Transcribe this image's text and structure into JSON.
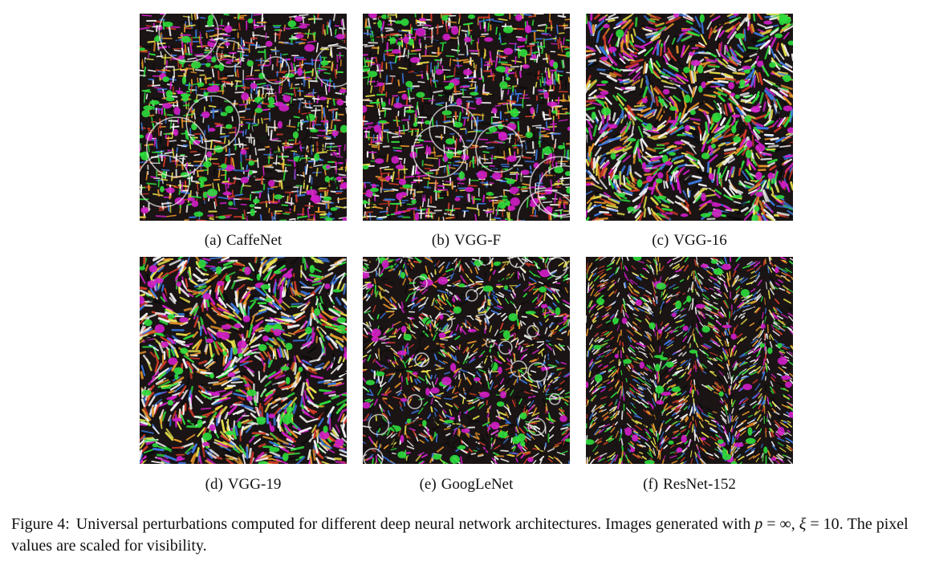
{
  "figure": {
    "panels": [
      {
        "id": "a",
        "label": "(a)",
        "name": "CaffeNet",
        "style": "grid"
      },
      {
        "id": "b",
        "label": "(b)",
        "name": "VGG-F",
        "style": "grid"
      },
      {
        "id": "c",
        "label": "(c)",
        "name": "VGG-16",
        "style": "swirl"
      },
      {
        "id": "d",
        "label": "(d)",
        "name": "VGG-19",
        "style": "swirl"
      },
      {
        "id": "e",
        "label": "(e)",
        "name": "GoogLeNet",
        "style": "curl"
      },
      {
        "id": "f",
        "label": "(f)",
        "name": "ResNet-152",
        "style": "fine"
      }
    ],
    "caption": {
      "number": "Figure 4:",
      "text_before": "Universal perturbations computed for different deep neural network architectures. Images generated with ",
      "p_var": "p",
      "eq1": " = ∞,",
      "xi_var": "ξ",
      "eq2": " = 10. The pixel values are scaled for visibility."
    },
    "colors": {
      "magenta": "#d21ec8",
      "green": "#2ddc3c",
      "white": "#f2f2f2",
      "black": "#0b0b0b",
      "red": "#d23a28",
      "orange": "#e8962a",
      "blue": "#3a78e0",
      "yellow": "#e6e04a"
    }
  }
}
